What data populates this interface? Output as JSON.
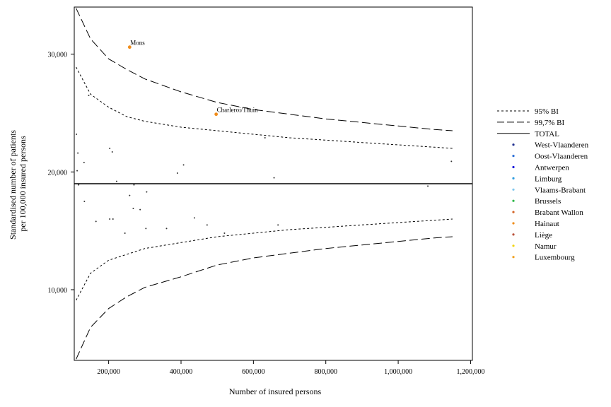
{
  "chart_data": {
    "type": "scatter",
    "xlabel": "Number of insured persons",
    "ylabel_lines": [
      "Standardised number of patients",
      "per 100,000 insured persons"
    ],
    "xlim": [
      105000,
      1205000
    ],
    "ylim": [
      4000,
      34000
    ],
    "x_ticks": [
      200000,
      400000,
      600000,
      800000,
      1000000,
      1200000
    ],
    "x_tick_labels": [
      "200,000",
      "400,000",
      "600,000",
      "800,000",
      "1,000,000",
      "1,200,000"
    ],
    "y_ticks": [
      10000,
      20000,
      30000
    ],
    "y_tick_labels": [
      "10,000",
      "20,000",
      "30,000"
    ],
    "grid": false,
    "legend_position": "right",
    "reference_line": {
      "name": "TOTAL",
      "y": 19000
    },
    "funnel_95": {
      "name": "95% BI",
      "x": [
        110000,
        150000,
        200000,
        250000,
        300000,
        400000,
        500000,
        600000,
        700000,
        800000,
        900000,
        1000000,
        1100000,
        1150000
      ],
      "upper": [
        28900,
        26600,
        25500,
        24700,
        24300,
        23800,
        23500,
        23200,
        22900,
        22700,
        22500,
        22300,
        22100,
        22000
      ],
      "lower": [
        9100,
        11400,
        12500,
        13000,
        13500,
        14000,
        14500,
        14800,
        15100,
        15300,
        15500,
        15700,
        15900,
        16000
      ]
    },
    "funnel_997": {
      "name": "99,7% BI",
      "x": [
        110000,
        150000,
        200000,
        250000,
        300000,
        400000,
        500000,
        600000,
        700000,
        800000,
        900000,
        1000000,
        1100000,
        1150000
      ],
      "upper": [
        33900,
        31300,
        29600,
        28700,
        27900,
        26800,
        25900,
        25300,
        24900,
        24500,
        24200,
        23900,
        23600,
        23500
      ],
      "lower": [
        4100,
        6800,
        8400,
        9400,
        10200,
        11100,
        12100,
        12700,
        13100,
        13500,
        13800,
        14100,
        14400,
        14500
      ]
    },
    "legend": [
      {
        "name": "95% BI",
        "style": "dashed-short"
      },
      {
        "name": "99,7% BI",
        "style": "dashed-long"
      },
      {
        "name": "TOTAL",
        "style": "solid"
      },
      {
        "name": "West-Vlaanderen",
        "color": "#1f2f8f"
      },
      {
        "name": "Oost-Vlaanderen",
        "color": "#2b6fd6"
      },
      {
        "name": "Antwerpen",
        "color": "#1a1adb"
      },
      {
        "name": "Limburg",
        "color": "#2f9de0"
      },
      {
        "name": "Vlaams-Brabant",
        "color": "#7fc7ee"
      },
      {
        "name": "Brussels",
        "color": "#2fb84a"
      },
      {
        "name": "Brabant Wallon",
        "color": "#d4662a"
      },
      {
        "name": "Hainaut",
        "color": "#f08c1a"
      },
      {
        "name": "Liège",
        "color": "#b8503a"
      },
      {
        "name": "Namur",
        "color": "#f2d410"
      },
      {
        "name": "Luxembourg",
        "color": "#f0a020"
      }
    ],
    "points": [
      {
        "x": 258000,
        "y": 30600,
        "color": "#f08c1a",
        "label": "Mons"
      },
      {
        "x": 497000,
        "y": 24900,
        "color": "#f08c1a",
        "label": "Charleroi/Thuin"
      },
      {
        "x": 111000,
        "y": 23200,
        "color": "#333333"
      },
      {
        "x": 115000,
        "y": 21600,
        "color": "#333333"
      },
      {
        "x": 113000,
        "y": 20100,
        "color": "#333333"
      },
      {
        "x": 117000,
        "y": 18900,
        "color": "#333333"
      },
      {
        "x": 132000,
        "y": 20800,
        "color": "#333333"
      },
      {
        "x": 145000,
        "y": 26500,
        "color": "#333333"
      },
      {
        "x": 133000,
        "y": 17500,
        "color": "#333333"
      },
      {
        "x": 203000,
        "y": 22000,
        "color": "#333333"
      },
      {
        "x": 210000,
        "y": 21700,
        "color": "#333333"
      },
      {
        "x": 222000,
        "y": 19200,
        "color": "#333333"
      },
      {
        "x": 165000,
        "y": 15800,
        "color": "#333333"
      },
      {
        "x": 203000,
        "y": 16000,
        "color": "#333333"
      },
      {
        "x": 212000,
        "y": 16000,
        "color": "#333333"
      },
      {
        "x": 245000,
        "y": 14800,
        "color": "#333333"
      },
      {
        "x": 258000,
        "y": 18000,
        "color": "#333333"
      },
      {
        "x": 270000,
        "y": 18900,
        "color": "#333333"
      },
      {
        "x": 268000,
        "y": 16900,
        "color": "#333333"
      },
      {
        "x": 287000,
        "y": 16800,
        "color": "#333333"
      },
      {
        "x": 305000,
        "y": 18300,
        "color": "#333333"
      },
      {
        "x": 303000,
        "y": 15200,
        "color": "#333333"
      },
      {
        "x": 360000,
        "y": 15200,
        "color": "#333333"
      },
      {
        "x": 390000,
        "y": 19900,
        "color": "#333333"
      },
      {
        "x": 407000,
        "y": 20600,
        "color": "#333333"
      },
      {
        "x": 437000,
        "y": 16100,
        "color": "#333333"
      },
      {
        "x": 472000,
        "y": 15500,
        "color": "#333333"
      },
      {
        "x": 520000,
        "y": 14800,
        "color": "#333333"
      },
      {
        "x": 632000,
        "y": 22900,
        "color": "#333333"
      },
      {
        "x": 657000,
        "y": 19500,
        "color": "#333333"
      },
      {
        "x": 668000,
        "y": 15500,
        "color": "#333333"
      },
      {
        "x": 1082000,
        "y": 18800,
        "color": "#333333"
      },
      {
        "x": 1147000,
        "y": 20900,
        "color": "#333333"
      }
    ]
  }
}
